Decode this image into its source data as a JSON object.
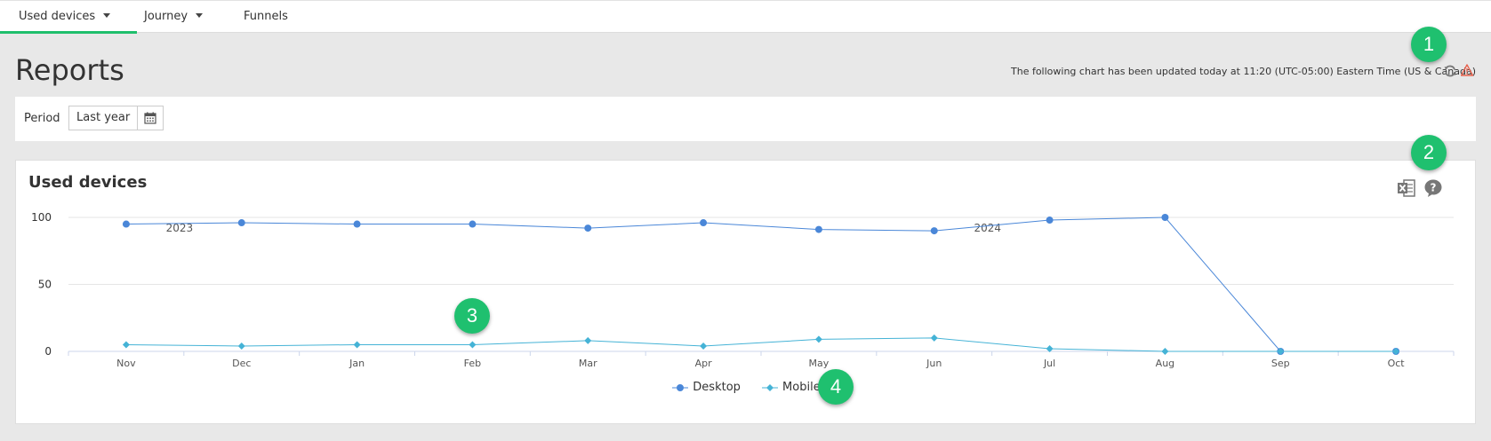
{
  "tabs": [
    {
      "label": "Used devices",
      "has_dropdown": true,
      "active": true
    },
    {
      "label": "Journey",
      "has_dropdown": true,
      "active": false
    },
    {
      "label": "Funnels",
      "has_dropdown": false,
      "active": false
    }
  ],
  "page": {
    "title": "Reports",
    "update_note": "The following chart has been updated today at 11:20 (UTC-05:00) Eastern Time (US & Canada)"
  },
  "period": {
    "label": "Period",
    "value": "Last year"
  },
  "callouts": [
    "1",
    "2",
    "3",
    "4"
  ],
  "colors": {
    "desktop": "#4a87d8",
    "mobile": "#45b3d6",
    "accent": "#1fbf6c",
    "callout": "#1fc06f",
    "warning": "#e8624e"
  },
  "chart_data": {
    "type": "line",
    "title": "Used devices",
    "categories": [
      "Nov",
      "Dec",
      "Jan",
      "Feb",
      "Mar",
      "Apr",
      "May",
      "Jun",
      "Jul",
      "Aug",
      "Sep",
      "Oct"
    ],
    "year_labels": [
      {
        "label": "2023",
        "category": "Nov"
      },
      {
        "label": "2024",
        "category": "Jun"
      }
    ],
    "ylim": [
      0,
      100
    ],
    "yticks": [
      0,
      50,
      100
    ],
    "grid": true,
    "legend_position": "bottom-center",
    "series": [
      {
        "name": "Desktop",
        "marker": "circle",
        "values": [
          95,
          96,
          95,
          95,
          92,
          96,
          91,
          90,
          98,
          100,
          0,
          0
        ]
      },
      {
        "name": "Mobile",
        "marker": "diamond",
        "values": [
          5,
          4,
          5,
          5,
          8,
          4,
          9,
          10,
          2,
          0,
          0,
          0
        ]
      }
    ]
  }
}
